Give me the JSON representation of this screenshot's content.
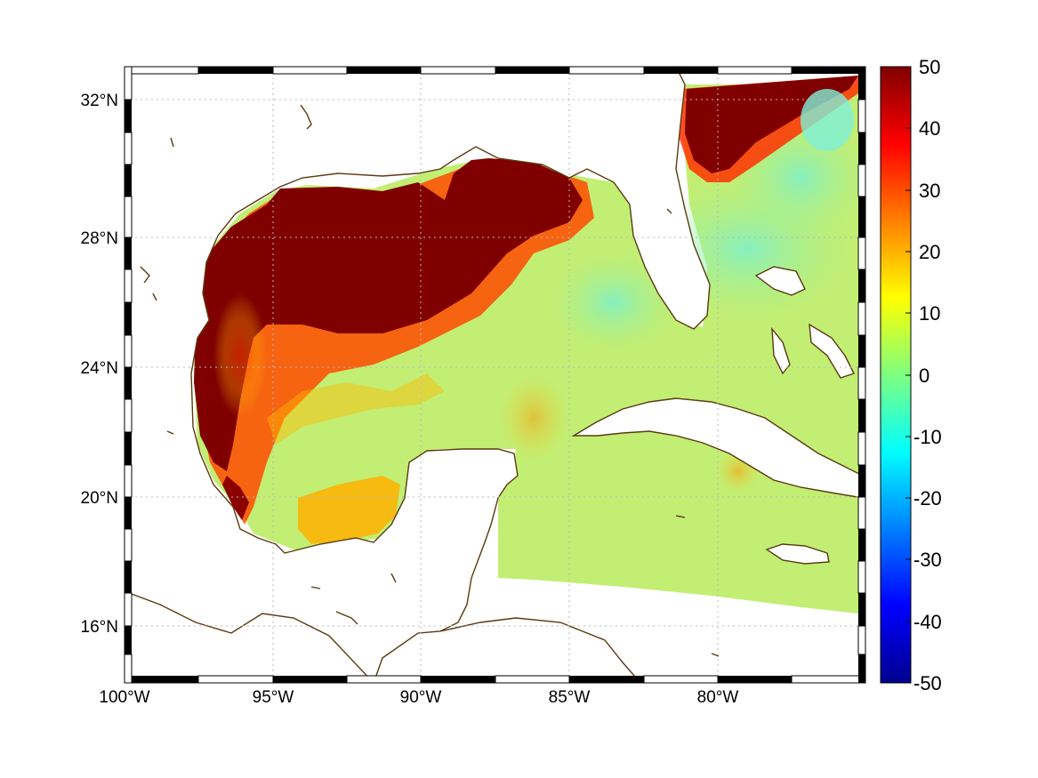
{
  "map": {
    "lon_range": [
      -100,
      -75
    ],
    "lat_range": [
      14,
      33
    ],
    "x_tick_labels": [
      "100°W",
      "95°W",
      "90°W",
      "85°W",
      "80°W"
    ],
    "x_tick_values": [
      -100,
      -95,
      -90,
      -85,
      -80
    ],
    "y_tick_labels": [
      "32°N",
      "28°N",
      "24°N",
      "20°N",
      "16°N"
    ],
    "y_tick_values": [
      32,
      28,
      24,
      20,
      16
    ],
    "grid": "dotted",
    "frame": "alternating black-white border",
    "coastline_color": "#5b3a0f"
  },
  "colorbar": {
    "labels": [
      "50",
      "40",
      "30",
      "20",
      "10",
      "0",
      "-10",
      "-20",
      "-30",
      "-40",
      "-50"
    ],
    "min": -50,
    "max": 50,
    "colormap": "jet",
    "placement": "right"
  },
  "field_colors": {
    "high": "#800000",
    "mid_high": "#ff2a00",
    "mid": "#ffb400",
    "low_mid": "#e6f03c",
    "neutral": "#b8f06e",
    "cool": "#8ef0b4"
  }
}
